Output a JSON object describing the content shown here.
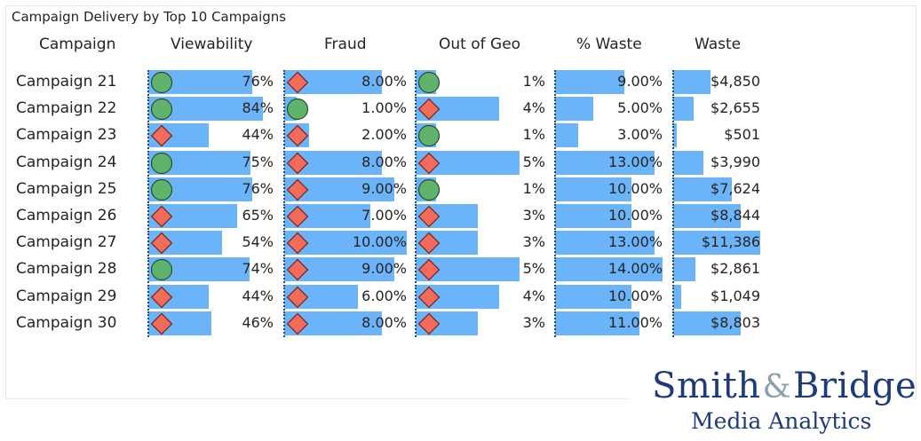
{
  "title": "Campaign Delivery by Top 10 Campaigns",
  "logo": {
    "name_left": "Smith",
    "amp": "&",
    "name_right": "Bridge",
    "subtitle": "Media Analytics"
  },
  "colors": {
    "bar": "#6cb4f9",
    "good": "#5fb36b",
    "bad": "#f26b5b",
    "axis": "#1f4e79"
  },
  "chart_data": {
    "type": "table",
    "title": "Campaign Delivery by Top 10 Campaigns",
    "columns": [
      "Campaign",
      "Viewability",
      "Fraud",
      "Out of Geo",
      "% Waste",
      "Waste"
    ],
    "rows": [
      {
        "campaign": "Campaign 21",
        "viewability": {
          "value": 76,
          "label": "76%",
          "icon": "circle"
        },
        "fraud": {
          "value": 8,
          "label": "8.00%",
          "icon": "diamond"
        },
        "geo": {
          "value": 1,
          "label": "1%",
          "icon": "circle"
        },
        "waste_pct": {
          "value": 9,
          "label": "9.00%"
        },
        "waste": {
          "value": 4850,
          "label": "$4,850"
        }
      },
      {
        "campaign": "Campaign 22",
        "viewability": {
          "value": 84,
          "label": "84%",
          "icon": "circle"
        },
        "fraud": {
          "value": 1,
          "label": "1.00%",
          "icon": "circle"
        },
        "geo": {
          "value": 4,
          "label": "4%",
          "icon": "diamond"
        },
        "waste_pct": {
          "value": 5,
          "label": "5.00%"
        },
        "waste": {
          "value": 2655,
          "label": "$2,655"
        }
      },
      {
        "campaign": "Campaign 23",
        "viewability": {
          "value": 44,
          "label": "44%",
          "icon": "diamond"
        },
        "fraud": {
          "value": 2,
          "label": "2.00%",
          "icon": "diamond"
        },
        "geo": {
          "value": 1,
          "label": "1%",
          "icon": "circle"
        },
        "waste_pct": {
          "value": 3,
          "label": "3.00%"
        },
        "waste": {
          "value": 501,
          "label": "$501"
        }
      },
      {
        "campaign": "Campaign 24",
        "viewability": {
          "value": 75,
          "label": "75%",
          "icon": "circle"
        },
        "fraud": {
          "value": 8,
          "label": "8.00%",
          "icon": "diamond"
        },
        "geo": {
          "value": 5,
          "label": "5%",
          "icon": "diamond"
        },
        "waste_pct": {
          "value": 13,
          "label": "13.00%"
        },
        "waste": {
          "value": 3990,
          "label": "$3,990"
        }
      },
      {
        "campaign": "Campaign 25",
        "viewability": {
          "value": 76,
          "label": "76%",
          "icon": "circle"
        },
        "fraud": {
          "value": 9,
          "label": "9.00%",
          "icon": "diamond"
        },
        "geo": {
          "value": 1,
          "label": "1%",
          "icon": "circle"
        },
        "waste_pct": {
          "value": 10,
          "label": "10.00%"
        },
        "waste": {
          "value": 7624,
          "label": "$7,624"
        }
      },
      {
        "campaign": "Campaign 26",
        "viewability": {
          "value": 65,
          "label": "65%",
          "icon": "diamond"
        },
        "fraud": {
          "value": 7,
          "label": "7.00%",
          "icon": "diamond"
        },
        "geo": {
          "value": 3,
          "label": "3%",
          "icon": "diamond"
        },
        "waste_pct": {
          "value": 10,
          "label": "10.00%"
        },
        "waste": {
          "value": 8844,
          "label": "$8,844"
        }
      },
      {
        "campaign": "Campaign 27",
        "viewability": {
          "value": 54,
          "label": "54%",
          "icon": "diamond"
        },
        "fraud": {
          "value": 10,
          "label": "10.00%",
          "icon": "diamond"
        },
        "geo": {
          "value": 3,
          "label": "3%",
          "icon": "diamond"
        },
        "waste_pct": {
          "value": 13,
          "label": "13.00%"
        },
        "waste": {
          "value": 11386,
          "label": "$11,386"
        }
      },
      {
        "campaign": "Campaign 28",
        "viewability": {
          "value": 74,
          "label": "74%",
          "icon": "circle"
        },
        "fraud": {
          "value": 9,
          "label": "9.00%",
          "icon": "diamond"
        },
        "geo": {
          "value": 5,
          "label": "5%",
          "icon": "diamond"
        },
        "waste_pct": {
          "value": 14,
          "label": "14.00%"
        },
        "waste": {
          "value": 2861,
          "label": "$2,861"
        }
      },
      {
        "campaign": "Campaign 29",
        "viewability": {
          "value": 44,
          "label": "44%",
          "icon": "diamond"
        },
        "fraud": {
          "value": 6,
          "label": "6.00%",
          "icon": "diamond"
        },
        "geo": {
          "value": 4,
          "label": "4%",
          "icon": "diamond"
        },
        "waste_pct": {
          "value": 10,
          "label": "10.00%"
        },
        "waste": {
          "value": 1049,
          "label": "$1,049"
        }
      },
      {
        "campaign": "Campaign 30",
        "viewability": {
          "value": 46,
          "label": "46%",
          "icon": "diamond"
        },
        "fraud": {
          "value": 8,
          "label": "8.00%",
          "icon": "diamond"
        },
        "geo": {
          "value": 3,
          "label": "3%",
          "icon": "diamond"
        },
        "waste_pct": {
          "value": 11,
          "label": "11.00%"
        },
        "waste": {
          "value": 8803,
          "label": "$8,803"
        }
      }
    ]
  }
}
